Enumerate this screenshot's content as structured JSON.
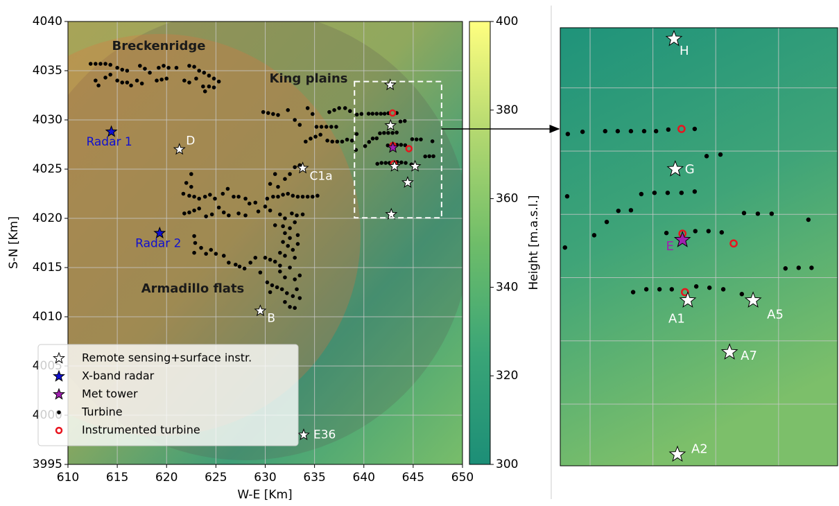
{
  "chart_data": {
    "type": "scatter",
    "xlabel": "W-E [Km]",
    "ylabel": "S-N [Km]",
    "xlim": [
      610,
      650
    ],
    "ylim": [
      3995,
      4040
    ],
    "xticks": [
      610,
      615,
      620,
      625,
      630,
      635,
      640,
      645,
      650
    ],
    "yticks": [
      3995,
      4000,
      4005,
      4010,
      4015,
      4020,
      4025,
      4030,
      4035,
      4040
    ],
    "grid": true,
    "annotations": [
      "Breckenridge",
      "King plains",
      "Armadillo flats"
    ],
    "colorbar": {
      "label": "Height [m.a.s.l.]",
      "lim": [
        300,
        400
      ],
      "ticks": [
        300,
        320,
        340,
        360,
        380,
        400
      ]
    },
    "zoom": {
      "xlim": [
        639.05,
        647.88
      ],
      "ylim": [
        4020.05,
        4033.9
      ],
      "xticks": [
        640,
        642,
        644,
        646
      ],
      "yticks": [
        4022,
        4024,
        4026,
        4028,
        4030,
        4032
      ]
    },
    "legend": "lower left",
    "groups": [
      {
        "name": "Remote sensing+surface instr.",
        "marker": "star",
        "color": "#ffffff",
        "points": [
          {
            "x": 621.3,
            "y": 4027.0,
            "label": "D"
          },
          {
            "x": 633.8,
            "y": 4025.1,
            "label": "C1a"
          },
          {
            "x": 629.5,
            "y": 4010.6,
            "label": "B"
          },
          {
            "x": 633.9,
            "y": 3998.0,
            "label": "E36"
          },
          {
            "x": 642.67,
            "y": 4033.55,
            "zoom_label": "H"
          },
          {
            "x": 642.71,
            "y": 4029.43,
            "zoom_label": "G"
          },
          {
            "x": 643.11,
            "y": 4025.28,
            "zoom_label": "A1"
          },
          {
            "x": 645.19,
            "y": 4025.28,
            "zoom_label": "A5"
          },
          {
            "x": 644.44,
            "y": 4023.64,
            "zoom_label": "A7"
          },
          {
            "x": 642.78,
            "y": 4020.41,
            "zoom_label": "A2"
          }
        ]
      },
      {
        "name": "X-band radar",
        "marker": "star",
        "color": "#1010d0",
        "points": [
          {
            "x": 614.4,
            "y": 4028.8,
            "label": "Radar 1"
          },
          {
            "x": 619.3,
            "y": 4018.5,
            "label": "Radar 2"
          }
        ]
      },
      {
        "name": "Met tower",
        "marker": "star",
        "color": "#a020b0",
        "points": [
          {
            "x": 642.94,
            "y": 4027.19,
            "zoom_label": "E"
          }
        ]
      },
      {
        "name": "Turbine",
        "marker": "dot",
        "color": "#000000",
        "points": [
          {
            "x": 612.3,
            "y": 4035.7
          },
          {
            "x": 612.8,
            "y": 4035.7
          },
          {
            "x": 613.3,
            "y": 4035.7
          },
          {
            "x": 613.8,
            "y": 4035.7
          },
          {
            "x": 614.3,
            "y": 4035.6
          },
          {
            "x": 615.0,
            "y": 4035.3
          },
          {
            "x": 615.5,
            "y": 4035.1
          },
          {
            "x": 616.0,
            "y": 4035.0
          },
          {
            "x": 617.3,
            "y": 4035.5
          },
          {
            "x": 617.8,
            "y": 4035.2
          },
          {
            "x": 618.3,
            "y": 4034.8
          },
          {
            "x": 619.2,
            "y": 4035.3
          },
          {
            "x": 619.7,
            "y": 4035.5
          },
          {
            "x": 620.2,
            "y": 4035.3
          },
          {
            "x": 622.3,
            "y": 4035.5
          },
          {
            "x": 622.8,
            "y": 4035.4
          },
          {
            "x": 623.3,
            "y": 4035.0
          },
          {
            "x": 623.8,
            "y": 4034.8
          },
          {
            "x": 624.3,
            "y": 4034.5
          },
          {
            "x": 624.8,
            "y": 4034.2
          },
          {
            "x": 625.3,
            "y": 4033.9
          },
          {
            "x": 612.8,
            "y": 4034.0
          },
          {
            "x": 613.1,
            "y": 4033.5
          },
          {
            "x": 613.8,
            "y": 4034.3
          },
          {
            "x": 614.3,
            "y": 4034.6
          },
          {
            "x": 615.0,
            "y": 4034.0
          },
          {
            "x": 615.5,
            "y": 4033.8
          },
          {
            "x": 616.0,
            "y": 4033.8
          },
          {
            "x": 616.4,
            "y": 4033.5
          },
          {
            "x": 617.0,
            "y": 4034.0
          },
          {
            "x": 617.5,
            "y": 4033.7
          },
          {
            "x": 619.0,
            "y": 4034.0
          },
          {
            "x": 619.5,
            "y": 4034.1
          },
          {
            "x": 620.0,
            "y": 4034.2
          },
          {
            "x": 621.0,
            "y": 4035.3
          },
          {
            "x": 621.8,
            "y": 4034.0
          },
          {
            "x": 622.3,
            "y": 4033.8
          },
          {
            "x": 623.0,
            "y": 4034.2
          },
          {
            "x": 623.7,
            "y": 4033.4
          },
          {
            "x": 624.3,
            "y": 4033.4
          },
          {
            "x": 624.8,
            "y": 4033.3
          },
          {
            "x": 623.9,
            "y": 4032.9
          },
          {
            "x": 629.8,
            "y": 4030.8
          },
          {
            "x": 630.3,
            "y": 4030.7
          },
          {
            "x": 630.8,
            "y": 4030.6
          },
          {
            "x": 631.3,
            "y": 4030.5
          },
          {
            "x": 632.3,
            "y": 4031.0
          },
          {
            "x": 633.0,
            "y": 4030.0
          },
          {
            "x": 633.5,
            "y": 4029.5
          },
          {
            "x": 634.3,
            "y": 4031.2
          },
          {
            "x": 634.8,
            "y": 4030.6
          },
          {
            "x": 635.2,
            "y": 4029.3
          },
          {
            "x": 635.7,
            "y": 4029.3
          },
          {
            "x": 636.2,
            "y": 4029.3
          },
          {
            "x": 636.7,
            "y": 4029.3
          },
          {
            "x": 637.2,
            "y": 4029.3
          },
          {
            "x": 636.5,
            "y": 4030.8
          },
          {
            "x": 637.0,
            "y": 4031.0
          },
          {
            "x": 637.5,
            "y": 4031.2
          },
          {
            "x": 638.1,
            "y": 4031.2
          },
          {
            "x": 638.6,
            "y": 4030.9
          },
          {
            "x": 634.1,
            "y": 4027.8
          },
          {
            "x": 634.6,
            "y": 4028.1
          },
          {
            "x": 635.1,
            "y": 4028.3
          },
          {
            "x": 635.6,
            "y": 4028.5
          },
          {
            "x": 636.3,
            "y": 4027.9
          },
          {
            "x": 636.8,
            "y": 4027.8
          },
          {
            "x": 637.3,
            "y": 4027.8
          },
          {
            "x": 637.8,
            "y": 4027.8
          },
          {
            "x": 638.3,
            "y": 4028.0
          },
          {
            "x": 638.8,
            "y": 4027.9
          },
          {
            "x": 639.29,
            "y": 4030.54
          },
          {
            "x": 639.76,
            "y": 4030.61
          },
          {
            "x": 640.48,
            "y": 4030.63
          },
          {
            "x": 640.88,
            "y": 4030.63
          },
          {
            "x": 641.3,
            "y": 4030.63
          },
          {
            "x": 641.72,
            "y": 4030.63
          },
          {
            "x": 642.1,
            "y": 4030.63
          },
          {
            "x": 642.49,
            "y": 4030.68
          },
          {
            "x": 643.33,
            "y": 4030.7
          },
          {
            "x": 643.71,
            "y": 4029.84
          },
          {
            "x": 644.15,
            "y": 4029.89
          },
          {
            "x": 639.27,
            "y": 4028.57
          },
          {
            "x": 641.63,
            "y": 4028.64
          },
          {
            "x": 642.05,
            "y": 4028.68
          },
          {
            "x": 642.47,
            "y": 4028.68
          },
          {
            "x": 642.91,
            "y": 4028.68
          },
          {
            "x": 643.33,
            "y": 4028.72
          },
          {
            "x": 644.9,
            "y": 4028.04
          },
          {
            "x": 645.34,
            "y": 4028.02
          },
          {
            "x": 645.78,
            "y": 4028.02
          },
          {
            "x": 646.95,
            "y": 4027.83
          },
          {
            "x": 640.53,
            "y": 4027.76
          },
          {
            "x": 640.9,
            "y": 4028.11
          },
          {
            "x": 641.3,
            "y": 4028.13
          },
          {
            "x": 640.13,
            "y": 4027.34
          },
          {
            "x": 642.43,
            "y": 4027.41
          },
          {
            "x": 643.35,
            "y": 4027.47
          },
          {
            "x": 643.77,
            "y": 4027.47
          },
          {
            "x": 644.19,
            "y": 4027.43
          },
          {
            "x": 639.2,
            "y": 4026.95
          },
          {
            "x": 646.22,
            "y": 4026.29
          },
          {
            "x": 646.64,
            "y": 4026.31
          },
          {
            "x": 647.05,
            "y": 4026.31
          },
          {
            "x": 641.37,
            "y": 4025.54
          },
          {
            "x": 641.79,
            "y": 4025.63
          },
          {
            "x": 642.21,
            "y": 4025.63
          },
          {
            "x": 642.6,
            "y": 4025.63
          },
          {
            "x": 643.38,
            "y": 4025.72
          },
          {
            "x": 643.8,
            "y": 4025.68
          },
          {
            "x": 644.24,
            "y": 4025.63
          },
          {
            "x": 644.83,
            "y": 4025.48
          },
          {
            "x": 622.5,
            "y": 4024.5
          },
          {
            "x": 622.0,
            "y": 4023.6
          },
          {
            "x": 622.5,
            "y": 4023.2
          },
          {
            "x": 621.7,
            "y": 4022.5
          },
          {
            "x": 622.3,
            "y": 4022.3
          },
          {
            "x": 622.8,
            "y": 4022.2
          },
          {
            "x": 623.3,
            "y": 4022.0
          },
          {
            "x": 623.9,
            "y": 4022.2
          },
          {
            "x": 624.4,
            "y": 4022.4
          },
          {
            "x": 624.9,
            "y": 4022.0
          },
          {
            "x": 625.7,
            "y": 4022.5
          },
          {
            "x": 626.2,
            "y": 4023.0
          },
          {
            "x": 626.8,
            "y": 4022.2
          },
          {
            "x": 627.3,
            "y": 4022.2
          },
          {
            "x": 628.0,
            "y": 4022.0
          },
          {
            "x": 628.4,
            "y": 4021.5
          },
          {
            "x": 629.0,
            "y": 4021.6
          },
          {
            "x": 630.2,
            "y": 4022.0
          },
          {
            "x": 630.8,
            "y": 4022.2
          },
          {
            "x": 631.3,
            "y": 4022.2
          },
          {
            "x": 631.8,
            "y": 4022.4
          },
          {
            "x": 632.3,
            "y": 4022.5
          },
          {
            "x": 632.8,
            "y": 4022.3
          },
          {
            "x": 633.3,
            "y": 4022.2
          },
          {
            "x": 633.8,
            "y": 4022.2
          },
          {
            "x": 634.3,
            "y": 4022.2
          },
          {
            "x": 634.8,
            "y": 4022.2
          },
          {
            "x": 635.3,
            "y": 4022.3
          },
          {
            "x": 632.0,
            "y": 4024.0
          },
          {
            "x": 632.5,
            "y": 4024.5
          },
          {
            "x": 633.0,
            "y": 4025.2
          },
          {
            "x": 633.5,
            "y": 4025.4
          },
          {
            "x": 631.3,
            "y": 4023.2
          },
          {
            "x": 630.5,
            "y": 4023.5
          },
          {
            "x": 631.0,
            "y": 4024.5
          },
          {
            "x": 621.8,
            "y": 4020.5
          },
          {
            "x": 622.3,
            "y": 4020.6
          },
          {
            "x": 622.8,
            "y": 4020.8
          },
          {
            "x": 623.3,
            "y": 4021.0
          },
          {
            "x": 624.0,
            "y": 4020.2
          },
          {
            "x": 624.6,
            "y": 4020.4
          },
          {
            "x": 625.3,
            "y": 4021.1
          },
          {
            "x": 625.8,
            "y": 4020.6
          },
          {
            "x": 626.3,
            "y": 4020.3
          },
          {
            "x": 627.3,
            "y": 4020.5
          },
          {
            "x": 628.0,
            "y": 4020.3
          },
          {
            "x": 629.3,
            "y": 4020.7
          },
          {
            "x": 630.0,
            "y": 4021.2
          },
          {
            "x": 630.5,
            "y": 4020.8
          },
          {
            "x": 631.5,
            "y": 4020.4
          },
          {
            "x": 632.0,
            "y": 4020.0
          },
          {
            "x": 632.7,
            "y": 4020.5
          },
          {
            "x": 633.2,
            "y": 4020.3
          },
          {
            "x": 633.8,
            "y": 4020.4
          },
          {
            "x": 631.0,
            "y": 4019.3
          },
          {
            "x": 631.8,
            "y": 4019.2
          },
          {
            "x": 632.5,
            "y": 4019.0
          },
          {
            "x": 633.0,
            "y": 4019.6
          },
          {
            "x": 632.0,
            "y": 4018.5
          },
          {
            "x": 632.5,
            "y": 4018.0
          },
          {
            "x": 633.3,
            "y": 4018.3
          },
          {
            "x": 631.8,
            "y": 4017.6
          },
          {
            "x": 632.3,
            "y": 4017.2
          },
          {
            "x": 632.8,
            "y": 4016.8
          },
          {
            "x": 633.3,
            "y": 4017.4
          },
          {
            "x": 631.5,
            "y": 4016.5
          },
          {
            "x": 632.0,
            "y": 4016.2
          },
          {
            "x": 633.0,
            "y": 4016.0
          },
          {
            "x": 622.8,
            "y": 4018.2
          },
          {
            "x": 622.9,
            "y": 4017.5
          },
          {
            "x": 622.8,
            "y": 4016.5
          },
          {
            "x": 623.5,
            "y": 4017.0
          },
          {
            "x": 624.5,
            "y": 4016.8
          },
          {
            "x": 624.0,
            "y": 4016.4
          },
          {
            "x": 625.0,
            "y": 4016.4
          },
          {
            "x": 625.8,
            "y": 4016.2
          },
          {
            "x": 626.3,
            "y": 4015.5
          },
          {
            "x": 627.0,
            "y": 4015.3
          },
          {
            "x": 627.4,
            "y": 4015.1
          },
          {
            "x": 627.9,
            "y": 4014.9
          },
          {
            "x": 628.5,
            "y": 4015.5
          },
          {
            "x": 629.0,
            "y": 4016.0
          },
          {
            "x": 630.0,
            "y": 4016.0
          },
          {
            "x": 630.5,
            "y": 4015.8
          },
          {
            "x": 631.0,
            "y": 4015.6
          },
          {
            "x": 631.5,
            "y": 4015.2
          },
          {
            "x": 629.5,
            "y": 4014.5
          },
          {
            "x": 630.2,
            "y": 4013.5
          },
          {
            "x": 630.7,
            "y": 4013.2
          },
          {
            "x": 631.2,
            "y": 4013.0
          },
          {
            "x": 631.7,
            "y": 4012.8
          },
          {
            "x": 632.2,
            "y": 4012.4
          },
          {
            "x": 632.8,
            "y": 4012.1
          },
          {
            "x": 633.2,
            "y": 4012.8
          },
          {
            "x": 630.5,
            "y": 4012.5
          },
          {
            "x": 632.0,
            "y": 4011.5
          },
          {
            "x": 632.5,
            "y": 4011.0
          },
          {
            "x": 633.0,
            "y": 4010.9
          },
          {
            "x": 633.5,
            "y": 4011.9
          },
          {
            "x": 632.0,
            "y": 4014.0
          },
          {
            "x": 633.0,
            "y": 4013.8
          },
          {
            "x": 631.5,
            "y": 4014.6
          },
          {
            "x": 632.5,
            "y": 4015.0
          },
          {
            "x": 633.5,
            "y": 4014.2
          }
        ]
      },
      {
        "name": "Instrumented turbine",
        "marker": "ring",
        "color": "#e8141e",
        "points": [
          {
            "x": 642.91,
            "y": 4030.7
          },
          {
            "x": 642.94,
            "y": 4027.39
          },
          {
            "x": 644.57,
            "y": 4027.08
          },
          {
            "x": 643.02,
            "y": 4025.54
          }
        ]
      }
    ]
  }
}
